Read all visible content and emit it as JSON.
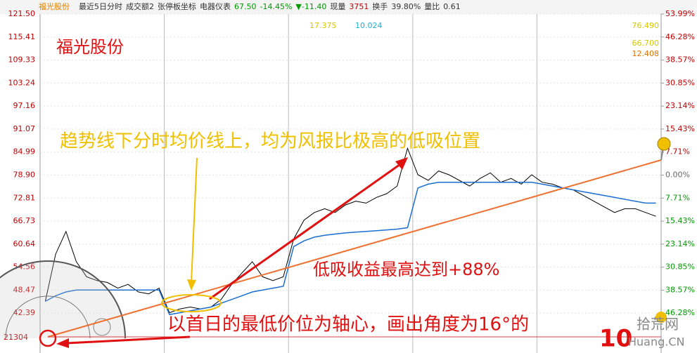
{
  "chart_data": {
    "type": "line",
    "title": "福光股份",
    "header_items": [
      "最近5日分时",
      "成交额2",
      "张停板坐标",
      "电器仪表",
      "67.50",
      "-14.45%",
      "▼-11.40",
      "现量",
      "3751",
      "换手",
      "39.80%",
      "量比",
      "0.61"
    ],
    "top_numbers": [
      "17.375",
      "10.024",
      "76.490",
      "66.700",
      "12.408"
    ],
    "annotations": [
      "趋势线下分时均价线上，均为风报比极高的低吸位置",
      "低吸收益最高达到+88%",
      "以首日的最低价位为轴心，画出角度为16°的"
    ],
    "watermark": [
      "10",
      "拾荒网",
      "Huang.CN"
    ],
    "volume_label": "21304",
    "days": 5,
    "series": [
      {
        "color": "#000000",
        "values": [
          45.5,
          58,
          64,
          56,
          52,
          51,
          50.5,
          49,
          50,
          48,
          47.5,
          49,
          42.5,
          43.5,
          44,
          43.5,
          44,
          46,
          50,
          53,
          56,
          52,
          51,
          52,
          62,
          67,
          69,
          70,
          69,
          71,
          72,
          71.5,
          73,
          74,
          76,
          86,
          79,
          77.5,
          80,
          79,
          77.5,
          76,
          78,
          79.5,
          77,
          78,
          76.5,
          79,
          77,
          76.5,
          75.5,
          75,
          73.5,
          72,
          70.5,
          69,
          70,
          70,
          69,
          68
        ]
      },
      {
        "color": "#1a6fd0",
        "values": [
          45.5,
          47,
          48,
          48.5,
          48.5,
          48.5,
          48.5,
          48.5,
          48.5,
          48.5,
          48.5,
          48.5,
          42,
          42.5,
          43,
          43.5,
          44,
          45,
          46,
          47,
          48,
          48.5,
          49,
          49.5,
          60,
          61.5,
          62.5,
          63,
          63.3,
          63.6,
          63.8,
          64,
          64.2,
          64.4,
          64.6,
          65,
          75.5,
          76.5,
          77,
          77,
          77,
          77,
          77,
          77,
          77,
          77,
          77,
          77,
          76.5,
          76,
          75.5,
          75,
          74.5,
          74,
          73.5,
          73,
          72.5,
          72,
          71.5,
          71.5
        ]
      }
    ],
    "ylim": [
      36.3,
      121.5
    ],
    "yticks": [
      {
        "value": 121.5,
        "label": "121.50"
      },
      115.41,
      109.33,
      103.24,
      97.16,
      91.07,
      84.99,
      {
        "value": 78.9,
        "label": "78.90"
      },
      72.81,
      66.73,
      60.64,
      54.56,
      48.47,
      42.39
    ],
    "y2lim": [
      -53.99,
      53.99
    ],
    "y2ticks": [
      {
        "value": 53.99,
        "label": "53.99%"
      },
      {
        "value": 46.28,
        "label": "46.28%"
      },
      {
        "value": 38.57,
        "label": "38.57%"
      },
      {
        "value": 30.85,
        "label": "30.85%"
      },
      {
        "value": 23.14,
        "label": "23.14%"
      },
      {
        "value": 15.43,
        "label": "15.43%"
      },
      {
        "value": 7.71,
        "label": "7.71%"
      },
      {
        "value": 0,
        "label": "0.00%"
      },
      {
        "value": -7.71,
        "label": "7.71%"
      },
      {
        "value": -15.43,
        "label": "15.43%"
      },
      {
        "value": -23.14,
        "label": "23.14%"
      },
      {
        "value": -30.85,
        "label": "30.85%"
      },
      {
        "value": -38.57,
        "label": "38.57%"
      },
      {
        "value": -46.28,
        "label": "46.28%"
      }
    ],
    "grid": true
  }
}
